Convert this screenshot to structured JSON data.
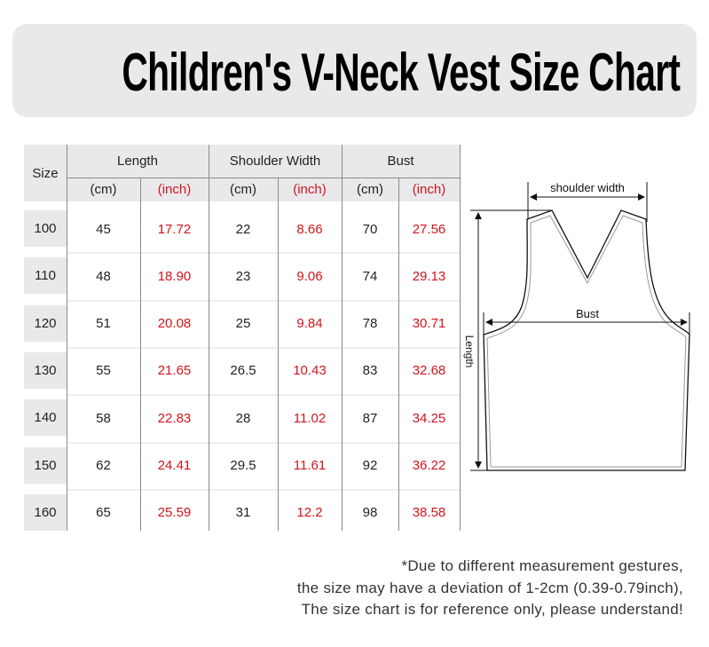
{
  "title": "Children's V-Neck Vest Size Chart",
  "table": {
    "size_header": "Size",
    "groups": [
      "Length",
      "Shoulder Width",
      "Bust"
    ],
    "units": [
      "(cm)",
      "(inch)",
      "(cm)",
      "(inch)",
      "(cm)",
      "(inch)"
    ],
    "rows": [
      [
        "100",
        "45",
        "17.72",
        "22",
        "8.66",
        "70",
        "27.56"
      ],
      [
        "110",
        "48",
        "18.90",
        "23",
        "9.06",
        "74",
        "29.13"
      ],
      [
        "120",
        "51",
        "20.08",
        "25",
        "9.84",
        "78",
        "30.71"
      ],
      [
        "130",
        "55",
        "21.65",
        "26.5",
        "10.43",
        "83",
        "32.68"
      ],
      [
        "140",
        "58",
        "22.83",
        "28",
        "11.02",
        "87",
        "34.25"
      ],
      [
        "150",
        "62",
        "24.41",
        "29.5",
        "11.61",
        "92",
        "36.22"
      ],
      [
        "160",
        "65",
        "25.59",
        "31",
        "12.2",
        "98",
        "38.58"
      ]
    ]
  },
  "diagram": {
    "shoulder_label": "shoulder width",
    "bust_label": "Bust",
    "length_label": "Length"
  },
  "notes": [
    "*Due to different measurement gestures,",
    "the size may have a deviation of 1-2cm (0.39-0.79inch),",
    "The size chart is for reference only, please understand!"
  ],
  "colors": {
    "inch_text": "#d2141c",
    "header_bg": "#e9e9ec"
  }
}
